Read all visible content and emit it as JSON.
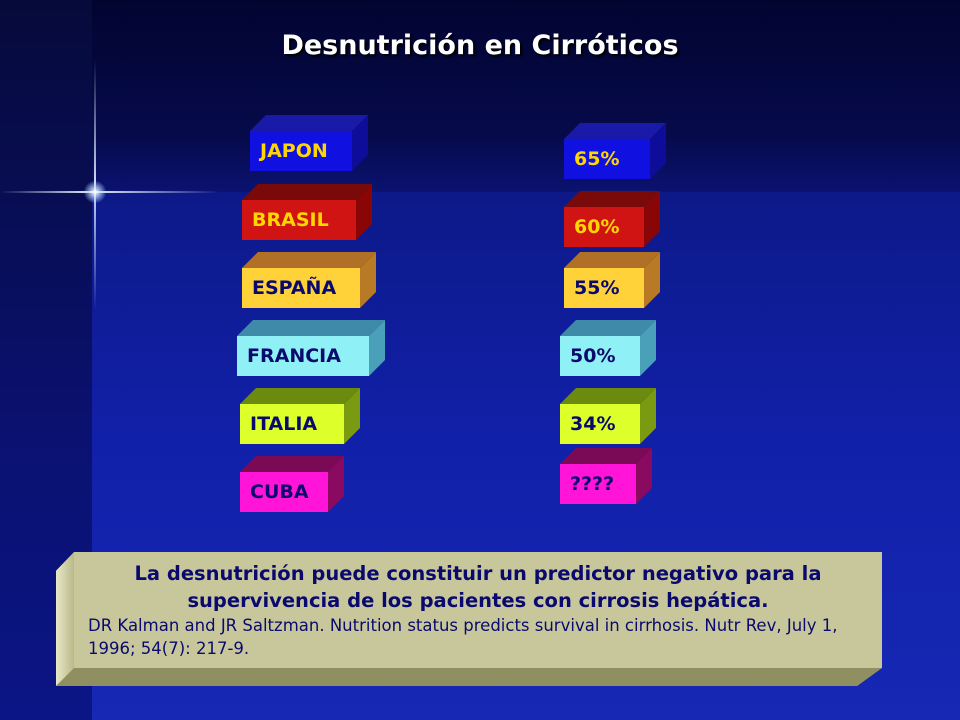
{
  "title": "Desnutrición en Cirróticos",
  "countries": [
    {
      "label": "JAPON",
      "value": "65%",
      "face": "#1010e0",
      "top": "#1a1aa8",
      "side": "#0d0d9a",
      "text": "#ffd700"
    },
    {
      "label": "BRASIL",
      "value": "60%",
      "face": "#d01414",
      "top": "#7a0a0a",
      "side": "#8a0606",
      "text": "#ffd700"
    },
    {
      "label": "ESPAÑA",
      "value": "55%",
      "face": "#ffd23a",
      "top": "#b07025",
      "side": "#b87a25",
      "text": "#0a0a6e"
    },
    {
      "label": "FRANCIA",
      "value": "50%",
      "face": "#8ff0f5",
      "top": "#3e8aa8",
      "side": "#4aa0b8",
      "text": "#0a0a6e"
    },
    {
      "label": "ITALIA",
      "value": "34%",
      "face": "#ddff2a",
      "top": "#6a8a10",
      "side": "#7a9a12",
      "text": "#0a0a6e"
    },
    {
      "label": "CUBA",
      "value": "????",
      "face": "#ff14d8",
      "top": "#7a0a55",
      "side": "#8a0a62",
      "text": "#0a0a6e"
    }
  ],
  "caption": {
    "main": "La desnutrición puede constituir un predictor negativo para la supervivencia de los  pacientes con cirrosis hepática.",
    "ref_authors": "DR Kalman and JR Saltzman",
    "ref_rest": ". Nutrition status predicts survival in cirrhosis. Nutr Rev, July 1, 1996; 54(7): 217-9."
  }
}
